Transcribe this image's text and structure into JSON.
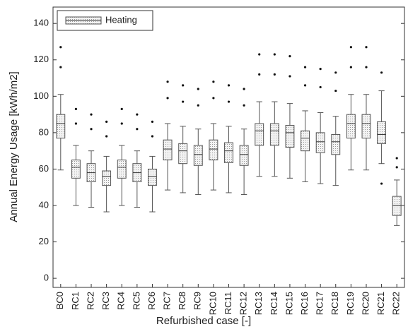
{
  "chart_data": {
    "type": "box",
    "xlabel": "Refurbished case [-]",
    "ylabel": "Annual Energy Usage [kWh/m2]",
    "categories": [
      "BC0",
      "RC1",
      "RC2",
      "RC3",
      "RC4",
      "RC5",
      "RC6",
      "RC7",
      "RC8",
      "RC9",
      "RC10",
      "RC11",
      "RC12",
      "RC13",
      "RC14",
      "RC15",
      "RC16",
      "RC17",
      "RC18",
      "RC19",
      "RC20",
      "RC21",
      "RC22"
    ],
    "series": [
      {
        "name": "Heating",
        "color": "#cccccc",
        "whisker_low": [
          59.5,
          40,
          39,
          36.5,
          40,
          39,
          36.5,
          48.5,
          47,
          46,
          48.5,
          47,
          46,
          56,
          56,
          55,
          53,
          52,
          51,
          59.5,
          59.5,
          63,
          29
        ],
        "q1": [
          77,
          55,
          53,
          51,
          55,
          53,
          51,
          65,
          63,
          62,
          65,
          63.5,
          62,
          73,
          73,
          72,
          70,
          69,
          68,
          77,
          77,
          74,
          34.5
        ],
        "median": [
          85,
          61,
          58,
          56,
          61,
          58,
          56,
          71,
          70,
          68,
          71,
          70,
          68,
          81,
          81,
          80,
          77,
          75,
          75,
          85,
          85,
          79,
          40
        ],
        "q3": [
          90,
          65,
          63,
          59,
          65,
          63,
          60,
          76,
          74,
          73,
          76,
          74.5,
          73,
          85,
          85,
          84,
          81,
          80,
          79,
          90,
          90,
          86,
          45
        ],
        "whisker_high": [
          101,
          73,
          70,
          67,
          73,
          70,
          67,
          85,
          83.5,
          82,
          85,
          83.5,
          82,
          97,
          97,
          96,
          92,
          91,
          89,
          101,
          101,
          103,
          54
        ],
        "outliers": [
          [
            116,
            127
          ],
          [
            85,
            93
          ],
          [
            82,
            90
          ],
          [
            78,
            86
          ],
          [
            85,
            93
          ],
          [
            82,
            90
          ],
          [
            78,
            86
          ],
          [
            99,
            108
          ],
          [
            97,
            106
          ],
          [
            95,
            104
          ],
          [
            99,
            108
          ],
          [
            97,
            106
          ],
          [
            95,
            104
          ],
          [
            112,
            123
          ],
          [
            112,
            123
          ],
          [
            111,
            122
          ],
          [
            106,
            116
          ],
          [
            105,
            115
          ],
          [
            103,
            113
          ],
          [
            116,
            127
          ],
          [
            116,
            127
          ],
          [
            52,
            113
          ],
          [
            61,
            66
          ]
        ]
      }
    ],
    "ylim": [
      -5,
      149
    ],
    "yticks": [
      0,
      20,
      40,
      60,
      80,
      100,
      120,
      140
    ],
    "legend": "upper left"
  }
}
